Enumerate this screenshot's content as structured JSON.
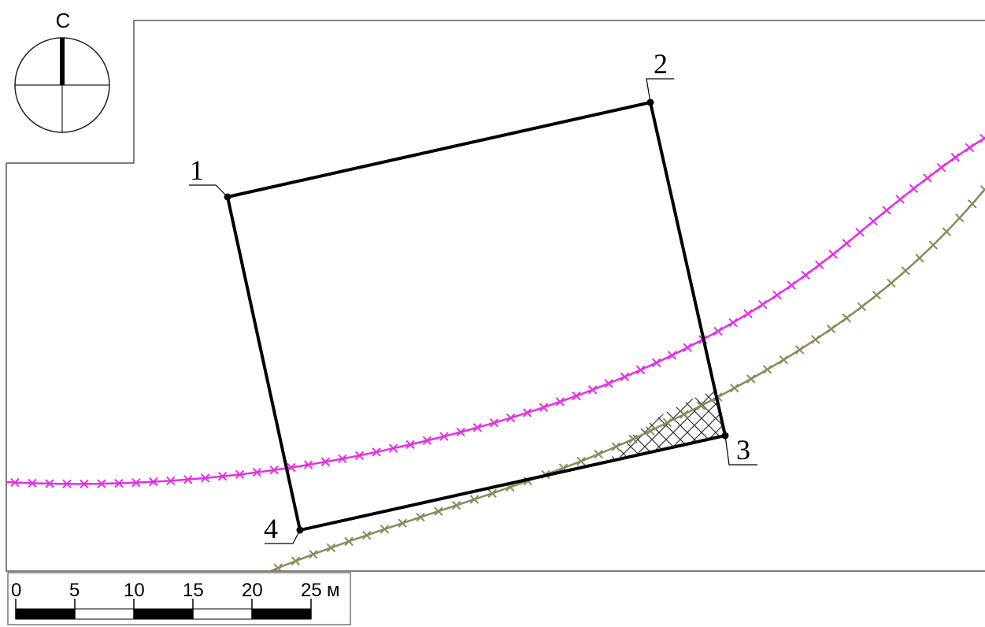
{
  "north_arrow": {
    "label": "С"
  },
  "parcel": {
    "vertices": [
      {
        "label": "1"
      },
      {
        "label": "2"
      },
      {
        "label": "3"
      },
      {
        "label": "4"
      }
    ]
  },
  "lines": [
    {
      "kind": "magenta-crossed-line",
      "color": "#e62ee6"
    },
    {
      "kind": "olive-crossed-line",
      "color": "#8a8a5c"
    }
  ],
  "scale_bar": {
    "ticks": [
      "0",
      "5",
      "10",
      "15",
      "20",
      "25"
    ],
    "unit": "м"
  }
}
